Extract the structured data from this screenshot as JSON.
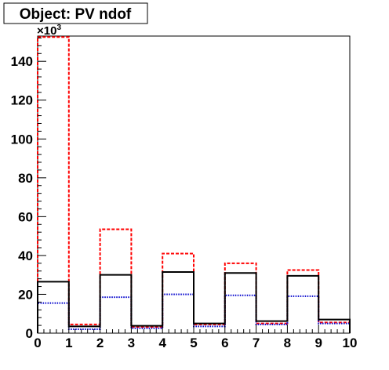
{
  "chart_data": {
    "type": "step",
    "title": "Object: PV ndof",
    "y_multiplier_base": "×10",
    "y_multiplier_exp": "3",
    "xlim": [
      0,
      10
    ],
    "ylim": [
      0,
      153
    ],
    "x_ticks": [
      "0",
      "1",
      "2",
      "3",
      "4",
      "5",
      "6",
      "7",
      "8",
      "9",
      "10"
    ],
    "y_ticks": [
      "0",
      "20",
      "40",
      "60",
      "80",
      "100",
      "120",
      "140"
    ],
    "bin_edges": [
      0,
      1,
      2,
      3,
      4,
      5,
      6,
      7,
      8,
      9,
      10
    ],
    "series": [
      {
        "color": "#000000",
        "style": "solid",
        "values": [
          26.5,
          3.5,
          30.0,
          3.8,
          31.5,
          5.0,
          31.0,
          6.2,
          29.5,
          7.0
        ]
      },
      {
        "color": "#ff0000",
        "style": "dashed",
        "values": [
          152.5,
          4.5,
          53.5,
          3.2,
          41.0,
          4.5,
          36.0,
          5.0,
          32.5,
          5.5
        ]
      },
      {
        "color": "#0000cc",
        "style": "dotted",
        "values": [
          15.5,
          2.0,
          18.5,
          2.5,
          20.0,
          3.5,
          19.5,
          4.5,
          19.0,
          5.0
        ]
      }
    ]
  }
}
